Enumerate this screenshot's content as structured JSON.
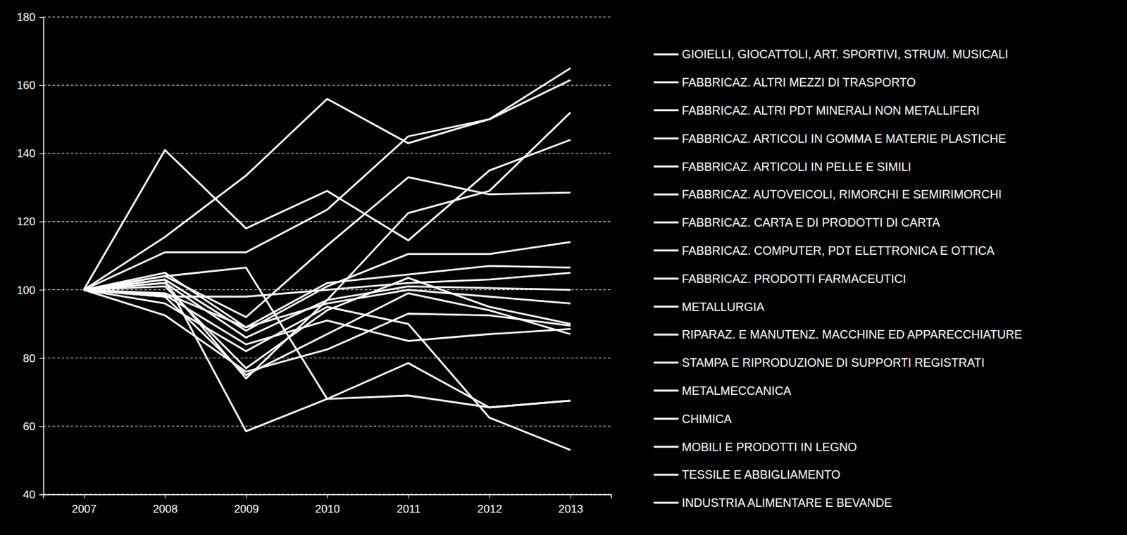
{
  "chart_data": {
    "type": "line",
    "categories": [
      "2007",
      "2008",
      "2009",
      "2010",
      "2011",
      "2012",
      "2013"
    ],
    "ylim": [
      40,
      180
    ],
    "yticks": [
      40,
      60,
      80,
      100,
      120,
      140,
      160,
      180
    ],
    "grid": true,
    "legend": "right",
    "series": [
      {
        "name": "GIOIELLI, GIOCATTOLI, ART. SPORTIVI, STRUM. MUSICALI",
        "color": "#ffffff",
        "line_style": "solid",
        "values": [
          100,
          141,
          118,
          129,
          114.5,
          135,
          144
        ]
      },
      {
        "name": "FABBRICAZ. ALTRI MEZZI DI TRASPORTO",
        "color": "#ffffff",
        "line_style": "solid",
        "values": [
          100,
          115.5,
          133.5,
          156,
          143,
          150,
          161.5
        ]
      },
      {
        "name": "FABBRICAZ. ALTRI PDT MINERALI NON METALLIFERI",
        "color": "#ffffff",
        "line_style": "solid",
        "values": [
          100,
          111,
          111,
          123.5,
          145,
          150,
          165
        ]
      },
      {
        "name": "FABBRICAZ. ARTICOLI IN GOMMA E MATERIE PLASTICHE",
        "color": "#ffffff",
        "line_style": "solid",
        "values": [
          100,
          104,
          92,
          113,
          133,
          128,
          128.5
        ]
      },
      {
        "name": "FABBRICAZ. ARTICOLI IN PELLE E SIMILI",
        "color": "#ffffff",
        "line_style": "solid",
        "values": [
          100,
          102,
          74,
          97,
          122.5,
          129,
          152
        ]
      },
      {
        "name": "FABBRICAZ. AUTOVEICOLI, RIMORCHI E SEMIRIMORCHI",
        "color": "#ffffff",
        "line_style": "solid",
        "values": [
          100,
          103,
          88,
          101,
          110.5,
          110.5,
          114
        ]
      },
      {
        "name": "FABBRICAZ. CARTA E DI PRODOTTI DI CARTA",
        "color": "#ffffff",
        "line_style": "solid",
        "values": [
          100,
          105,
          89,
          102,
          104.5,
          107,
          106.5
        ]
      },
      {
        "name": "FABBRICAZ. COMPUTER, PDT ELETTRONICA E OTTICA",
        "color": "#ffffff",
        "line_style": "solid",
        "values": [
          100,
          98,
          98,
          100,
          102,
          103,
          105
        ]
      },
      {
        "name": "FABBRICAZ. PRODOTTI FARMACEUTICI",
        "color": "#ffffff",
        "line_style": "solid",
        "values": [
          100,
          102,
          86,
          97,
          101,
          100.5,
          100
        ]
      },
      {
        "name": "METALLURGIA",
        "color": "#ffffff",
        "line_style": "solid",
        "values": [
          100,
          104,
          106.5,
          68,
          69,
          65.5,
          67.5
        ]
      },
      {
        "name": "RIPARAZ. E MANUTENZ. MACCHINE ED APPARECCHIATURE",
        "color": "#ffffff",
        "line_style": "solid",
        "values": [
          100,
          99,
          89,
          96,
          100,
          98,
          96
        ]
      },
      {
        "name": "STAMPA E RIPRODUZIONE DI SUPPORTI REGISTRATI",
        "color": "#ffffff",
        "line_style": "solid",
        "values": [
          100,
          103,
          58.5,
          68,
          78.5,
          65.5,
          67.5
        ]
      },
      {
        "name": "METALMECCANICA",
        "color": "#ffffff",
        "line_style": "solid",
        "values": [
          100,
          96,
          82,
          95,
          90,
          62.5,
          53
        ]
      },
      {
        "name": "CHIMICA",
        "color": "#ffffff",
        "line_style": "solid",
        "values": [
          100,
          98.5,
          84,
          91,
          85,
          87,
          88.5
        ]
      },
      {
        "name": "MOBILI E PRODOTTI IN LEGNO",
        "color": "#ffffff",
        "line_style": "solid",
        "values": [
          100,
          92.5,
          76,
          82.5,
          93,
          92.5,
          89.5
        ]
      },
      {
        "name": "TESSILE E ABBIGLIAMENTO",
        "color": "#ffffff",
        "line_style": "solid",
        "values": [
          100,
          98,
          75,
          87,
          99,
          94,
          87
        ]
      },
      {
        "name": "INDUSTRIA ALIMENTARE E BEVANDE",
        "color": "#ffffff",
        "line_style": "solid",
        "values": [
          100,
          101,
          77,
          94,
          103.5,
          95,
          90
        ]
      }
    ]
  }
}
